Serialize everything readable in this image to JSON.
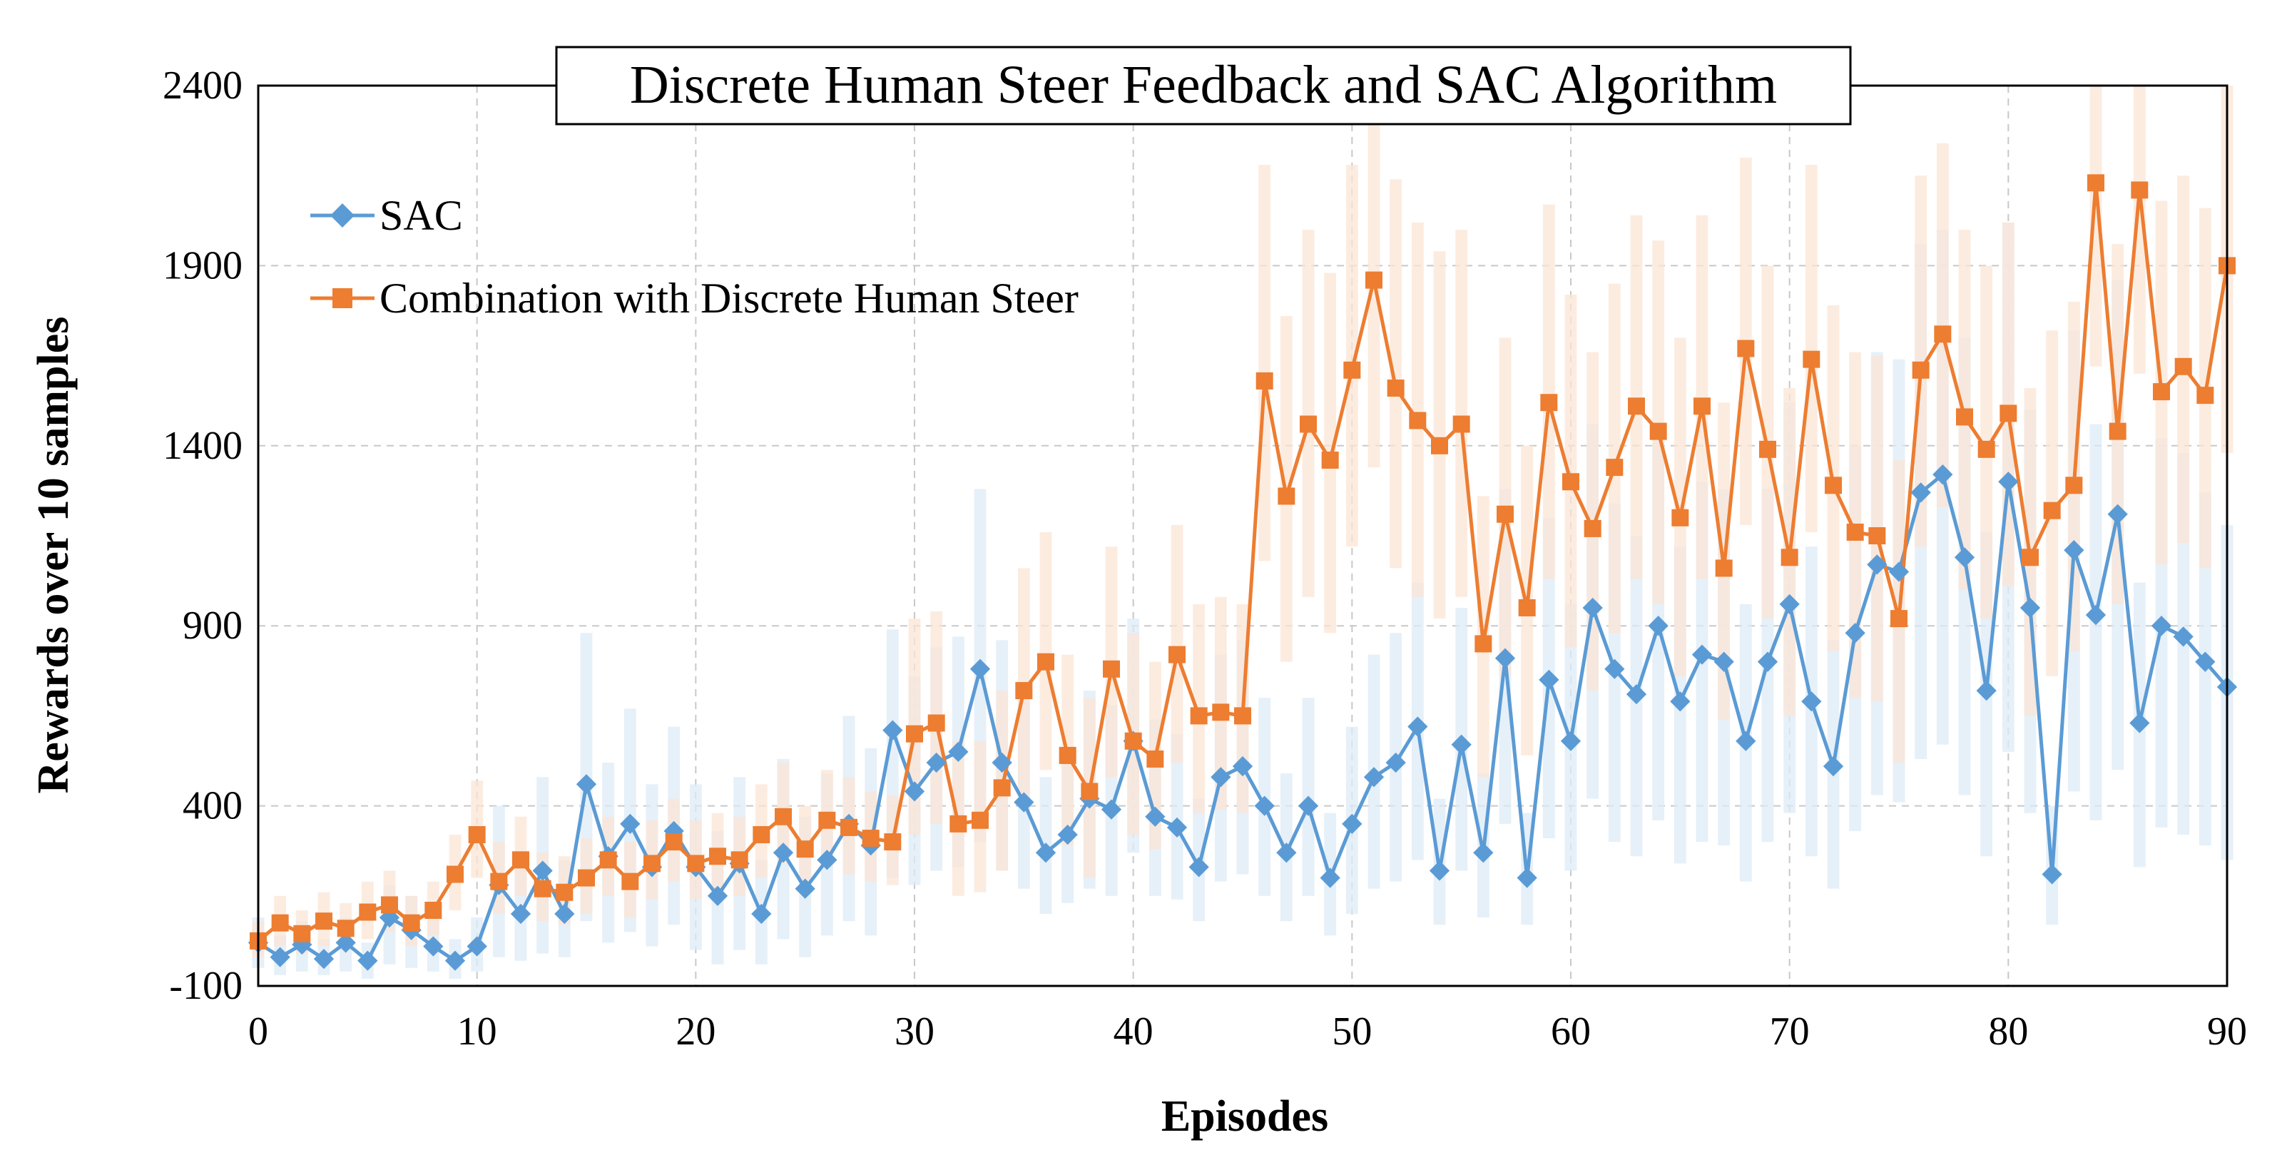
{
  "chart_data": {
    "type": "line",
    "title": "Discrete Human Steer Feedback and SAC Algorithm",
    "xlabel": "Episodes",
    "ylabel": "Rewards over 10 samples",
    "xlim": [
      0,
      90
    ],
    "ylim": [
      -100,
      2400
    ],
    "xticks": [
      0,
      10,
      20,
      30,
      40,
      50,
      60,
      70,
      80,
      90
    ],
    "yticks": [
      -100,
      400,
      900,
      1400,
      1900,
      2400
    ],
    "grid": true,
    "legend_position": "top-left",
    "colors": {
      "sac": "#5B9BD5",
      "combo": "#ED7D31",
      "sac_band": "#DDEBF7",
      "combo_band": "#FBE5D6"
    },
    "series": [
      {
        "name": "SAC",
        "marker": "diamond",
        "x": [
          0,
          1,
          2,
          3,
          4,
          5,
          6,
          7,
          8,
          9,
          10,
          11,
          12,
          13,
          14,
          15,
          16,
          17,
          18,
          19,
          20,
          21,
          22,
          23,
          24,
          25,
          26,
          27,
          28,
          29,
          30,
          31,
          32,
          33,
          34,
          35,
          36,
          37,
          38,
          39,
          40,
          41,
          42,
          43,
          44,
          45,
          46,
          47,
          48,
          49,
          50,
          51,
          52,
          53,
          54,
          55,
          56,
          57,
          58,
          59,
          60,
          61,
          62,
          63,
          64,
          65,
          66,
          67,
          68,
          69,
          70,
          71,
          72,
          73,
          74,
          75,
          76,
          77,
          78,
          79,
          80,
          81,
          82,
          83,
          84,
          85,
          86,
          87,
          88,
          89,
          90
        ],
        "values": [
          20,
          -20,
          15,
          -25,
          20,
          -30,
          90,
          55,
          10,
          -30,
          10,
          180,
          100,
          220,
          100,
          460,
          260,
          350,
          230,
          330,
          230,
          150,
          240,
          100,
          270,
          170,
          250,
          350,
          290,
          610,
          440,
          520,
          550,
          780,
          520,
          410,
          270,
          320,
          420,
          390,
          580,
          370,
          340,
          230,
          480,
          510,
          400,
          270,
          400,
          200,
          350,
          480,
          520,
          620,
          220,
          570,
          270,
          810,
          200,
          750,
          580,
          950,
          780,
          710,
          900,
          690,
          820,
          800,
          580,
          800,
          960,
          690,
          510,
          880,
          1070,
          1050,
          1270,
          1320,
          1090,
          720,
          1300,
          950,
          210,
          1110,
          930,
          1210,
          630,
          900,
          870,
          800,
          730
        ],
        "band_low": [
          -50,
          -70,
          -60,
          -70,
          -60,
          -80,
          -40,
          -50,
          -60,
          -80,
          -60,
          -20,
          -30,
          -10,
          -20,
          80,
          20,
          50,
          10,
          70,
          0,
          -40,
          0,
          -40,
          30,
          -20,
          40,
          80,
          40,
          200,
          180,
          220,
          230,
          300,
          220,
          170,
          100,
          130,
          170,
          150,
          270,
          150,
          140,
          80,
          190,
          210,
          150,
          80,
          150,
          40,
          100,
          170,
          190,
          250,
          70,
          220,
          90,
          350,
          70,
          310,
          220,
          420,
          300,
          260,
          360,
          240,
          300,
          290,
          190,
          300,
          380,
          260,
          170,
          330,
          430,
          410,
          530,
          570,
          430,
          260,
          550,
          380,
          70,
          440,
          360,
          500,
          230,
          340,
          320,
          290,
          250
        ],
        "band_high": [
          90,
          40,
          80,
          30,
          90,
          20,
          180,
          150,
          90,
          30,
          90,
          400,
          260,
          480,
          250,
          880,
          520,
          670,
          460,
          620,
          460,
          330,
          480,
          250,
          530,
          370,
          490,
          650,
          560,
          890,
          760,
          840,
          870,
          1280,
          860,
          700,
          480,
          560,
          720,
          680,
          920,
          640,
          600,
          420,
          820,
          860,
          700,
          490,
          700,
          380,
          620,
          820,
          880,
          1020,
          420,
          950,
          490,
          1280,
          380,
          1200,
          960,
          1460,
          1240,
          1150,
          1420,
          1120,
          1300,
          1280,
          960,
          1280,
          1520,
          1120,
          860,
          1400,
          1660,
          1640,
          1960,
          2000,
          1700,
          1160,
          2020,
          1500,
          400,
          1720,
          1460,
          1860,
          1020,
          1420,
          1380,
          1270,
          1180
        ]
      },
      {
        "name": "Combination with Discrete Human Steer",
        "marker": "square",
        "x": [
          0,
          1,
          2,
          3,
          4,
          5,
          6,
          7,
          8,
          9,
          10,
          11,
          12,
          13,
          14,
          15,
          16,
          17,
          18,
          19,
          20,
          21,
          22,
          23,
          24,
          25,
          26,
          27,
          28,
          29,
          30,
          31,
          32,
          33,
          34,
          35,
          36,
          37,
          38,
          39,
          40,
          41,
          42,
          43,
          44,
          45,
          46,
          47,
          48,
          49,
          50,
          51,
          52,
          53,
          54,
          55,
          56,
          57,
          58,
          59,
          60,
          61,
          62,
          63,
          64,
          65,
          66,
          67,
          68,
          69,
          70,
          71,
          72,
          73,
          74,
          75,
          76,
          77,
          78,
          79,
          80,
          81,
          82,
          83,
          84,
          85,
          86,
          87,
          88,
          89,
          90
        ],
        "values": [
          25,
          75,
          45,
          80,
          60,
          105,
          125,
          75,
          110,
          210,
          320,
          190,
          250,
          170,
          160,
          200,
          250,
          190,
          240,
          300,
          240,
          260,
          250,
          320,
          370,
          280,
          360,
          340,
          310,
          300,
          600,
          630,
          350,
          360,
          450,
          720,
          800,
          540,
          440,
          780,
          580,
          530,
          820,
          650,
          660,
          650,
          1580,
          1260,
          1460,
          1360,
          1610,
          1860,
          1560,
          1470,
          1400,
          1460,
          850,
          1210,
          950,
          1520,
          1300,
          1170,
          1340,
          1510,
          1440,
          1200,
          1510,
          1060,
          1670,
          1390,
          1090,
          1640,
          1290,
          1160,
          1150,
          920,
          1610,
          1710,
          1480,
          1390,
          1490,
          1090,
          1220,
          1290,
          2130,
          1440,
          2110,
          1550,
          1620,
          1540,
          1900
        ],
        "band_low": [
          -20,
          10,
          -10,
          10,
          0,
          30,
          50,
          10,
          40,
          110,
          200,
          100,
          150,
          80,
          70,
          100,
          150,
          90,
          140,
          190,
          140,
          160,
          150,
          200,
          240,
          170,
          230,
          210,
          190,
          180,
          320,
          350,
          150,
          160,
          220,
          430,
          500,
          290,
          200,
          480,
          320,
          280,
          520,
          380,
          390,
          380,
          1080,
          800,
          980,
          880,
          1120,
          1340,
          1060,
          980,
          920,
          980,
          480,
          760,
          540,
          1030,
          840,
          720,
          880,
          1030,
          960,
          760,
          1030,
          640,
          1180,
          920,
          650,
          1160,
          830,
          700,
          690,
          520,
          1120,
          1230,
          1000,
          920,
          1010,
          650,
          760,
          830,
          1620,
          960,
          1600,
          1070,
          1130,
          1060,
          1380
        ],
        "band_high": [
          80,
          150,
          110,
          160,
          130,
          190,
          220,
          150,
          190,
          320,
          470,
          300,
          370,
          270,
          260,
          310,
          370,
          300,
          360,
          420,
          360,
          380,
          370,
          460,
          520,
          400,
          500,
          480,
          440,
          430,
          920,
          940,
          580,
          580,
          720,
          1060,
          1160,
          820,
          700,
          1120,
          880,
          800,
          1180,
          960,
          980,
          960,
          2180,
          1760,
          2000,
          1880,
          2180,
          2400,
          2140,
          2020,
          1940,
          2000,
          1260,
          1700,
          1400,
          2070,
          1820,
          1660,
          1850,
          2040,
          1970,
          1700,
          2040,
          1520,
          2200,
          1900,
          1560,
          2180,
          1790,
          1660,
          1650,
          1360,
          2150,
          2240,
          2000,
          1900,
          2020,
          1560,
          1720,
          1800,
          2400,
          1960,
          2400,
          2080,
          2150,
          2060,
          2400
        ]
      }
    ]
  }
}
